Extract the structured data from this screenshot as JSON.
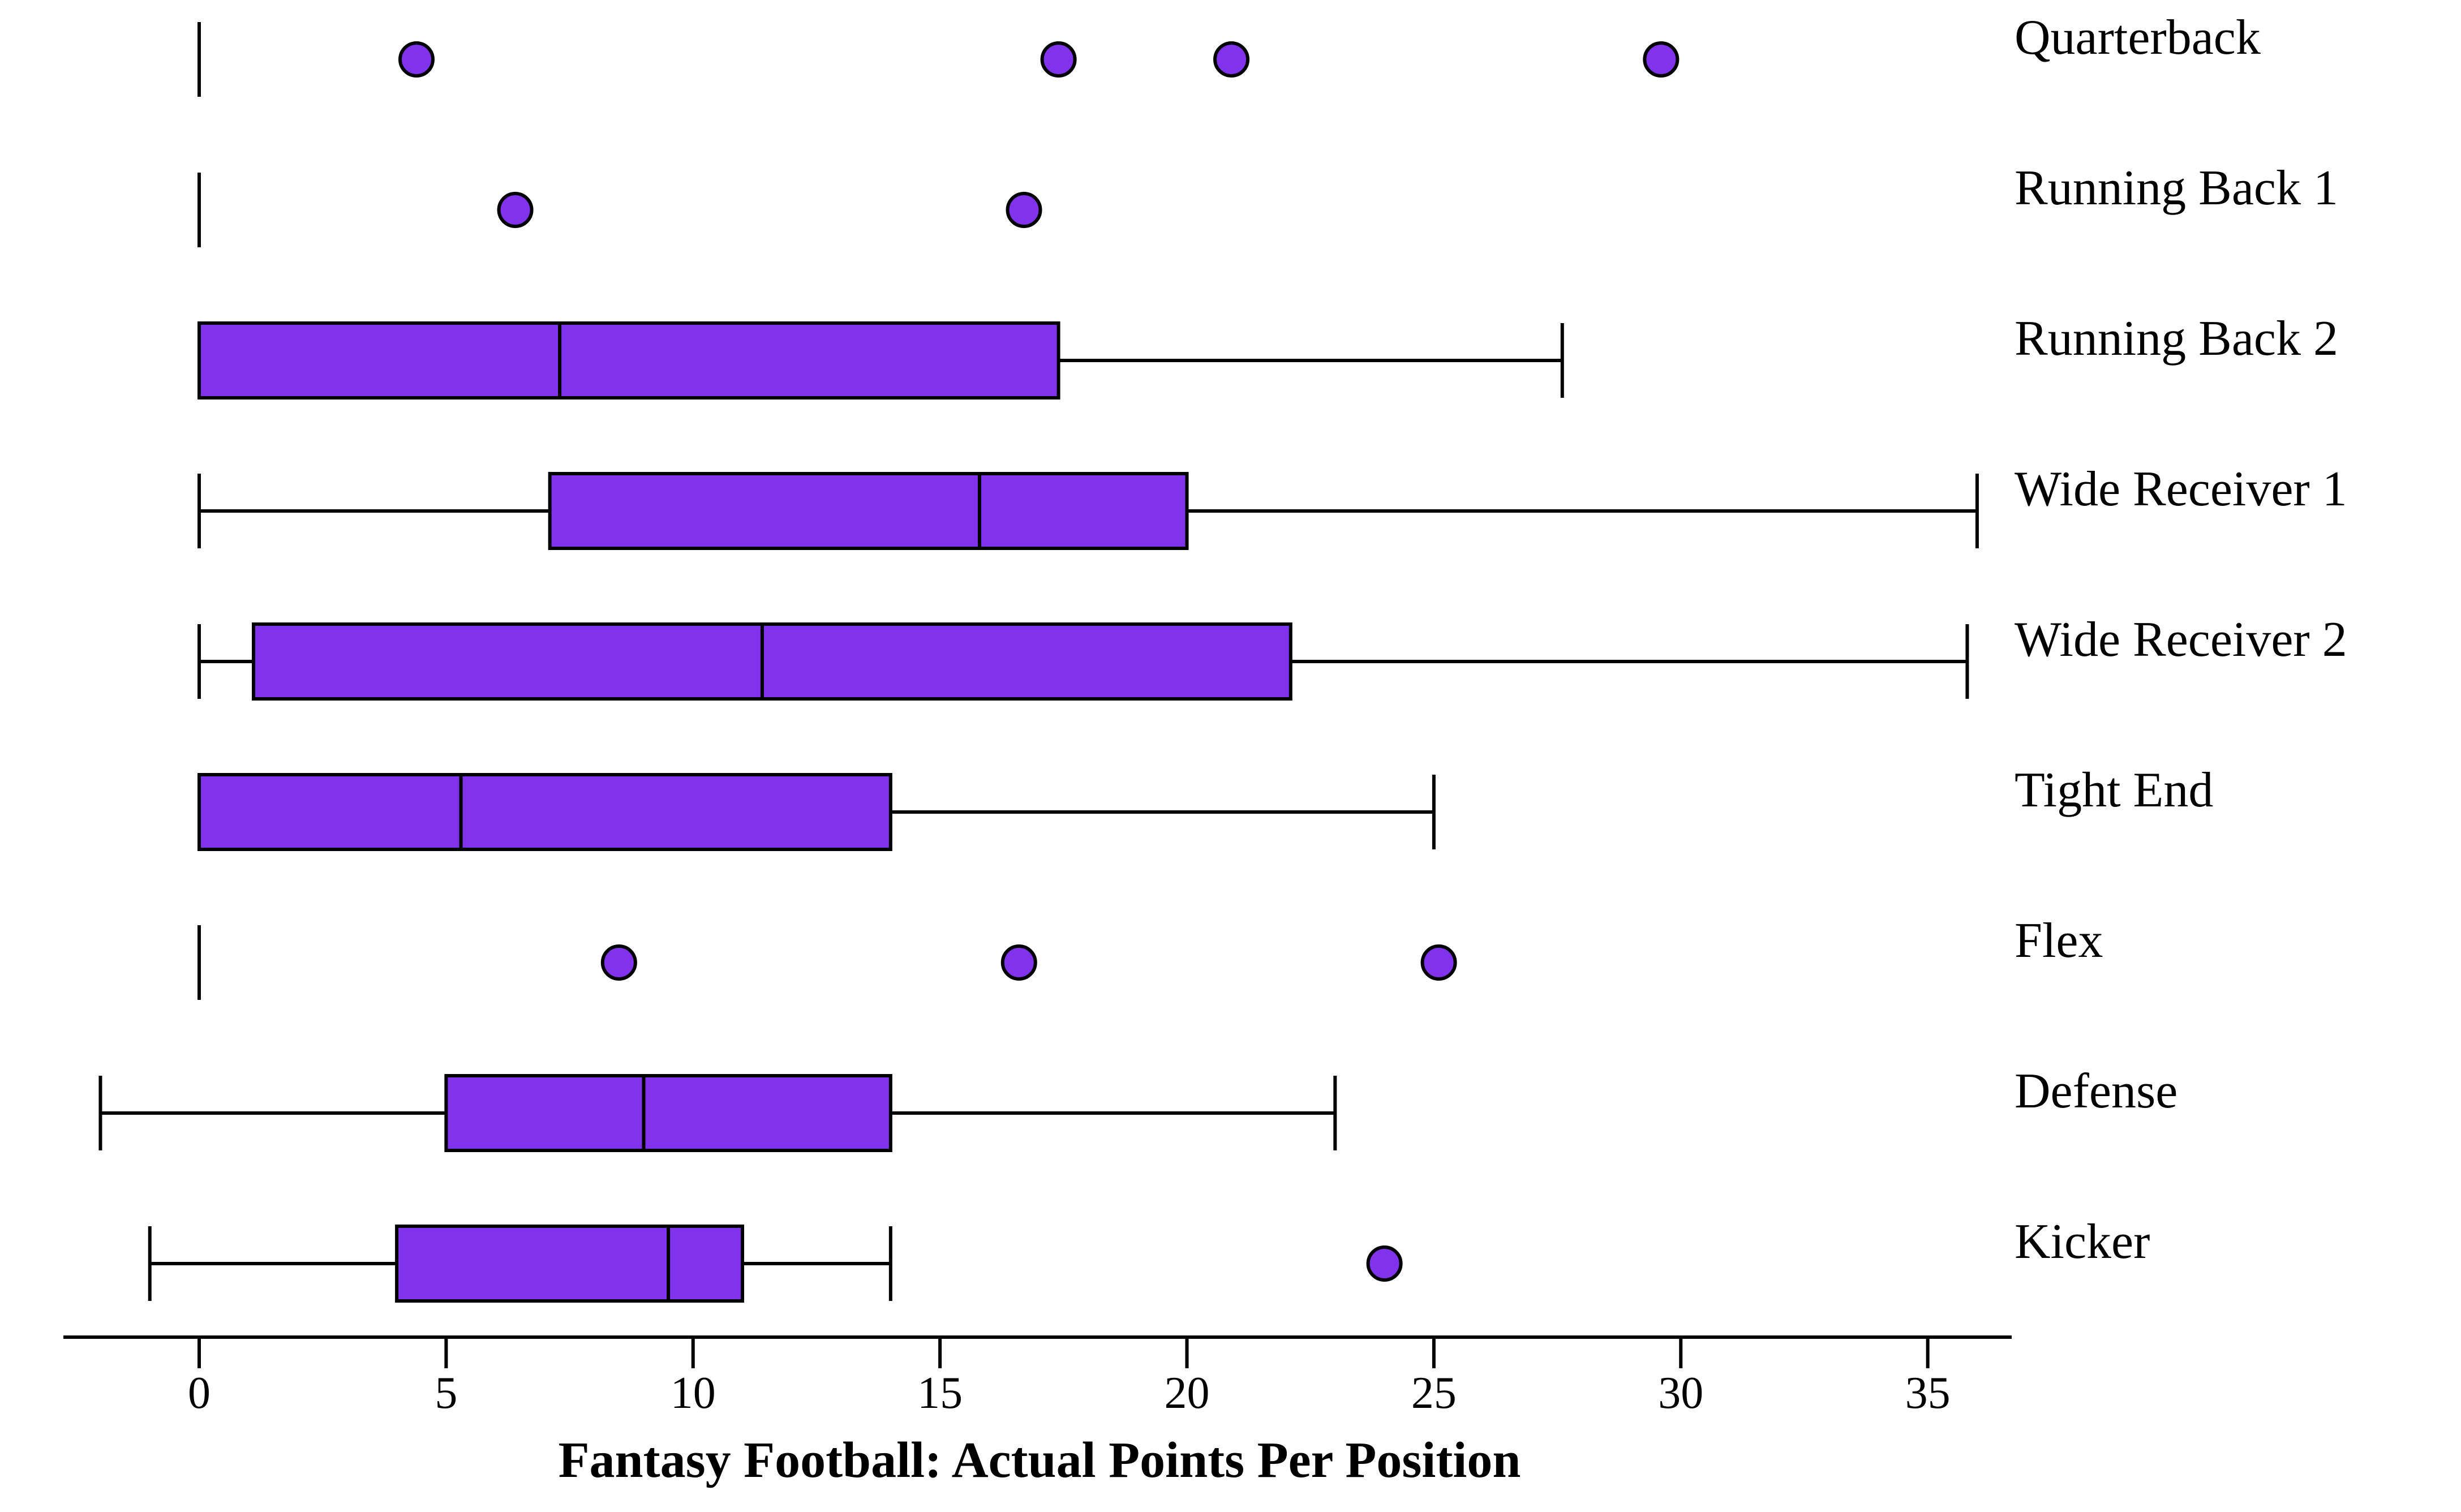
{
  "chart_data": {
    "type": "boxplot",
    "orientation": "horizontal",
    "title": "",
    "xlabel": "Fantasy Football: Actual Points Per Position",
    "ylabel": "",
    "xlim": [
      -2.75,
      36.7
    ],
    "xticks": [
      0,
      5,
      10,
      15,
      20,
      25,
      30,
      35
    ],
    "xtick_labels": [
      "0",
      "5",
      "10",
      "15",
      "20",
      "25",
      "30",
      "35"
    ],
    "grid": false,
    "colors": {
      "box_fill": "#8033EA",
      "outlier_fill": "#8033EA",
      "stroke": "#000000"
    },
    "categories": [
      {
        "label": "Quarterback",
        "whisker_low": 0,
        "q1": 0,
        "median": 0,
        "q3": 0,
        "whisker_high": 0,
        "outliers": [
          4.4,
          17.4,
          20.9,
          29.6
        ]
      },
      {
        "label": "Running Back 1",
        "whisker_low": 0,
        "q1": 0,
        "median": 0,
        "q3": 0,
        "whisker_high": 0,
        "outliers": [
          6.4,
          16.7
        ]
      },
      {
        "label": "Running Back 2",
        "whisker_low": 0,
        "q1": 0,
        "median": 7.3,
        "q3": 17.4,
        "whisker_high": 27.6,
        "outliers": []
      },
      {
        "label": "Wide Receiver 1",
        "whisker_low": 0,
        "q1": 7.1,
        "median": 15.8,
        "q3": 20.0,
        "whisker_high": 36.0,
        "outliers": []
      },
      {
        "label": "Wide Receiver 2",
        "whisker_low": 0,
        "q1": 1.1,
        "median": 11.4,
        "q3": 22.1,
        "whisker_high": 35.8,
        "outliers": []
      },
      {
        "label": "Tight End",
        "whisker_low": 0,
        "q1": 0,
        "median": 5.3,
        "q3": 14.0,
        "whisker_high": 25.0,
        "outliers": []
      },
      {
        "label": "Flex",
        "whisker_low": 0,
        "q1": 0,
        "median": 0,
        "q3": 0,
        "whisker_high": 0,
        "outliers": [
          8.5,
          16.6,
          25.1
        ]
      },
      {
        "label": "Defense",
        "whisker_low": -2,
        "q1": 5.0,
        "median": 9.0,
        "q3": 14.0,
        "whisker_high": 23.0,
        "outliers": []
      },
      {
        "label": "Kicker",
        "whisker_low": -1,
        "q1": 4.0,
        "median": 9.5,
        "q3": 11.0,
        "whisker_high": 14.0,
        "outliers": [
          24.0
        ]
      }
    ]
  }
}
